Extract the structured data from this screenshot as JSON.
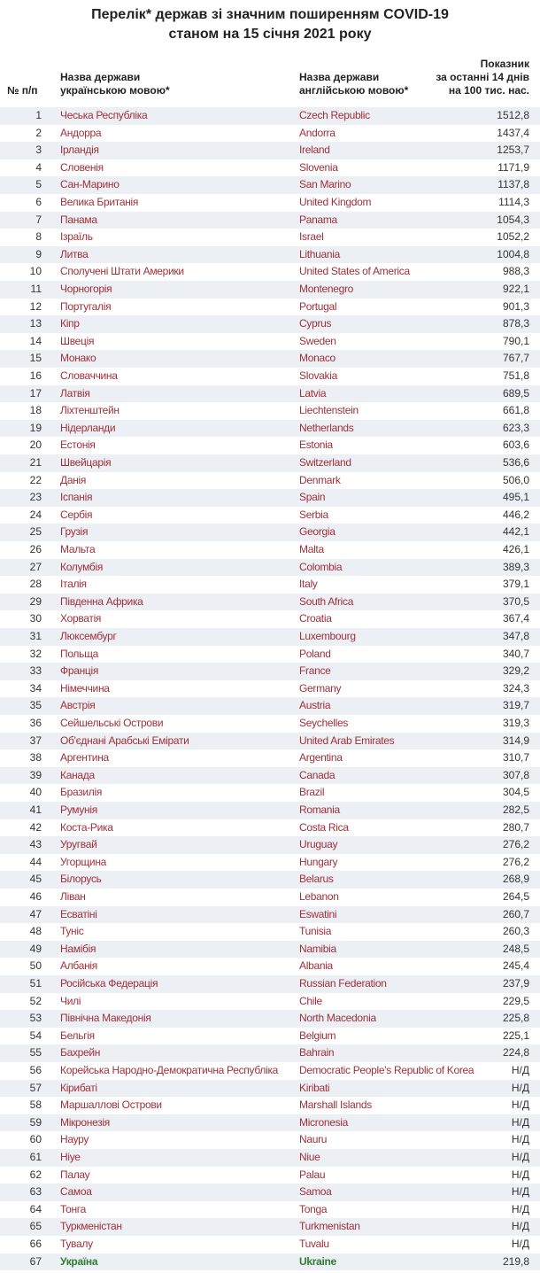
{
  "title": [
    "Перелік* держав зі значним поширенням COVID-19",
    "станом на 15 січня 2021 року"
  ],
  "header": {
    "num": "№ п/п",
    "uk_name": [
      "Назва держави",
      "українською мовою*"
    ],
    "en_name": [
      "Назва держави",
      "англійською мовою*"
    ],
    "value": [
      "Показник",
      "за останні 14 днів",
      "на 100 тис. нас."
    ]
  },
  "rows": [
    [
      1,
      "Чеська Республіка",
      "Czech Republic",
      "1512,8"
    ],
    [
      2,
      "Андорра",
      "Andorra",
      "1437,4"
    ],
    [
      3,
      "Ірландія",
      "Ireland",
      "1253,7"
    ],
    [
      4,
      "Словенія",
      "Slovenia",
      "1171,9"
    ],
    [
      5,
      "Сан-Марино",
      "San Marino",
      "1137,8"
    ],
    [
      6,
      "Велика Британія",
      "United Kingdom",
      "1114,3"
    ],
    [
      7,
      "Панама",
      "Panama",
      "1054,3"
    ],
    [
      8,
      "Ізраїль",
      "Israel",
      "1052,2"
    ],
    [
      9,
      "Литва",
      "Lithuania",
      "1004,8"
    ],
    [
      10,
      "Сполучені Штати Америки",
      "United States of America",
      "988,3"
    ],
    [
      11,
      "Чорногорія",
      "Montenegro",
      "922,1"
    ],
    [
      12,
      "Португалія",
      "Portugal",
      "901,3"
    ],
    [
      13,
      "Кіпр",
      "Cyprus",
      "878,3"
    ],
    [
      14,
      "Швеція",
      "Sweden",
      "790,1"
    ],
    [
      15,
      "Монако",
      "Monaco",
      "767,7"
    ],
    [
      16,
      "Словаччина",
      "Slovakia",
      "751,8"
    ],
    [
      17,
      "Латвія",
      "Latvia",
      "689,5"
    ],
    [
      18,
      "Ліхтенштейн",
      "Liechtenstein",
      "661,8"
    ],
    [
      19,
      "Нідерланди",
      "Netherlands",
      "623,3"
    ],
    [
      20,
      "Естонія",
      "Estonia",
      "603,6"
    ],
    [
      21,
      "Швейцарія",
      "Switzerland",
      "536,6"
    ],
    [
      22,
      "Данія",
      "Denmark",
      "506,0"
    ],
    [
      23,
      "Іспанія",
      "Spain",
      "495,1"
    ],
    [
      24,
      "Сербія",
      "Serbia",
      "446,2"
    ],
    [
      25,
      "Грузія",
      "Georgia",
      "442,1"
    ],
    [
      26,
      "Мальта",
      "Malta",
      "426,1"
    ],
    [
      27,
      "Колумбія",
      "Colombia",
      "389,3"
    ],
    [
      28,
      "Італія",
      "Italy",
      "379,1"
    ],
    [
      29,
      "Південна Африка",
      "South Africa",
      "370,5"
    ],
    [
      30,
      "Хорватія",
      "Croatia",
      "367,4"
    ],
    [
      31,
      "Люксембург",
      "Luxembourg",
      "347,8"
    ],
    [
      32,
      "Польща",
      "Poland",
      "340,7"
    ],
    [
      33,
      "Франція",
      "France",
      "329,2"
    ],
    [
      34,
      "Німеччина",
      "Germany",
      "324,3"
    ],
    [
      35,
      "Австрія",
      "Austria",
      "319,7"
    ],
    [
      36,
      "Сейшельські Острови",
      "Seychelles",
      "319,3"
    ],
    [
      37,
      "Об'єднані Арабські Емірати",
      "United Arab Emirates",
      "314,9"
    ],
    [
      38,
      "Аргентина",
      "Argentina",
      "310,7"
    ],
    [
      39,
      "Канада",
      "Canada",
      "307,8"
    ],
    [
      40,
      "Бразилія",
      "Brazil",
      "304,5"
    ],
    [
      41,
      "Румунія",
      "Romania",
      "282,5"
    ],
    [
      42,
      "Коста-Рика",
      "Costa Rica",
      "280,7"
    ],
    [
      43,
      "Уругвай",
      "Uruguay",
      "276,2"
    ],
    [
      44,
      "Угорщина",
      "Hungary",
      "276,2"
    ],
    [
      45,
      "Білорусь",
      "Belarus",
      "268,9"
    ],
    [
      46,
      "Ліван",
      "Lebanon",
      "264,5"
    ],
    [
      47,
      "Есватіні",
      "Eswatini",
      "260,7"
    ],
    [
      48,
      "Туніс",
      "Tunisia",
      "260,3"
    ],
    [
      49,
      "Намібія",
      "Namibia",
      "248,5"
    ],
    [
      50,
      "Албанія",
      "Albania",
      "245,4"
    ],
    [
      51,
      "Російська Федерація",
      "Russian Federation",
      "237,9"
    ],
    [
      52,
      "Чилі",
      "Chile",
      "229,5"
    ],
    [
      53,
      "Північна Македонія",
      "North Macedonia",
      "225,8"
    ],
    [
      54,
      "Бельгія",
      "Belgium",
      "225,1"
    ],
    [
      55,
      "Бахрейн",
      "Bahrain",
      "224,8"
    ],
    [
      56,
      "Корейська Народно-Демократична Республіка",
      "Democratic People's Republic of Korea",
      "Н/Д"
    ],
    [
      57,
      "Кірибаті",
      "Kiribati",
      "Н/Д"
    ],
    [
      58,
      "Маршаллові Острови",
      "Marshall Islands",
      "Н/Д"
    ],
    [
      59,
      "Мікронезія",
      "Micronesia",
      "Н/Д"
    ],
    [
      60,
      "Науру",
      "Nauru",
      "Н/Д"
    ],
    [
      61,
      "Ніуе",
      "Niue",
      "Н/Д"
    ],
    [
      62,
      "Палау",
      "Palau",
      "Н/Д"
    ],
    [
      63,
      "Самоа",
      "Samoa",
      "Н/Д"
    ],
    [
      64,
      "Тонга",
      "Tonga",
      "Н/Д"
    ],
    [
      65,
      "Туркменістан",
      "Turkmenistan",
      "Н/Д"
    ],
    [
      66,
      "Тувалу",
      "Tuvalu",
      "Н/Д"
    ],
    [
      67,
      "Україна",
      "Ukraine",
      "219,8"
    ]
  ]
}
